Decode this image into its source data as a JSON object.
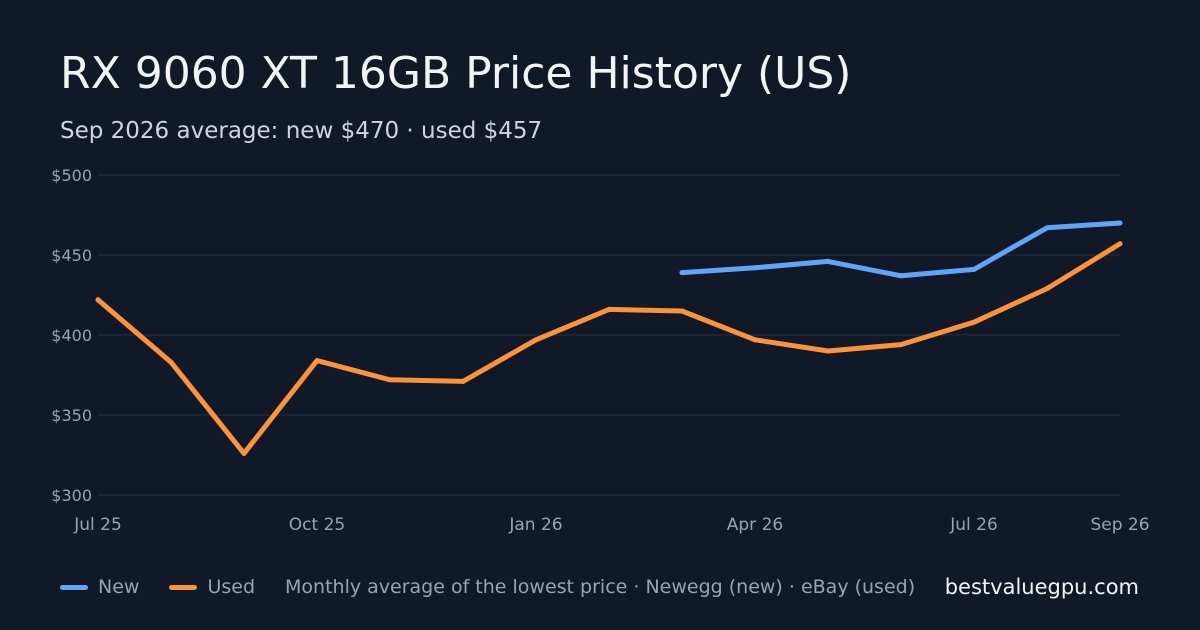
{
  "header": {
    "title": "RX 9060 XT 16GB Price History (US)",
    "subtitle": "Sep 2026 average: new $470 · used $457"
  },
  "footer": {
    "legend_new": "New",
    "legend_used": "Used",
    "note": "Monthly average of the lowest price · Newegg (new) · eBay (used)",
    "brand": "bestvaluegpu.com"
  },
  "colors": {
    "background": "#111827",
    "new": "#60a5fa",
    "used": "#fb923c",
    "grid": "#243042"
  },
  "chart_data": {
    "type": "line",
    "x": [
      "2025-07",
      "2025-08",
      "2025-09",
      "2025-10",
      "2025-11",
      "2025-12",
      "2026-01",
      "2026-02",
      "2026-03",
      "2026-04",
      "2026-05",
      "2026-06",
      "2026-07",
      "2026-08",
      "2026-09"
    ],
    "x_tick_labels": [
      "Jul 25",
      "Oct 25",
      "Jan 26",
      "Apr 26",
      "Jul 26",
      "Sep 26"
    ],
    "x_tick_positions": [
      "2025-07",
      "2025-10",
      "2026-01",
      "2026-04",
      "2026-07",
      "2026-09"
    ],
    "ylim": [
      300,
      500
    ],
    "y_ticks": [
      300,
      350,
      400,
      450,
      500
    ],
    "y_tick_labels": [
      "$300",
      "$350",
      "$400",
      "$450",
      "$500"
    ],
    "grid": true,
    "legend_position": "bottom-left",
    "series": [
      {
        "name": "New",
        "color": "#60a5fa",
        "values": [
          null,
          null,
          null,
          null,
          null,
          null,
          null,
          null,
          439,
          442,
          446,
          437,
          441,
          467,
          470
        ]
      },
      {
        "name": "Used",
        "color": "#fb923c",
        "values": [
          422,
          383,
          326,
          384,
          372,
          371,
          397,
          416,
          415,
          397,
          390,
          394,
          408,
          429,
          457
        ]
      }
    ]
  }
}
